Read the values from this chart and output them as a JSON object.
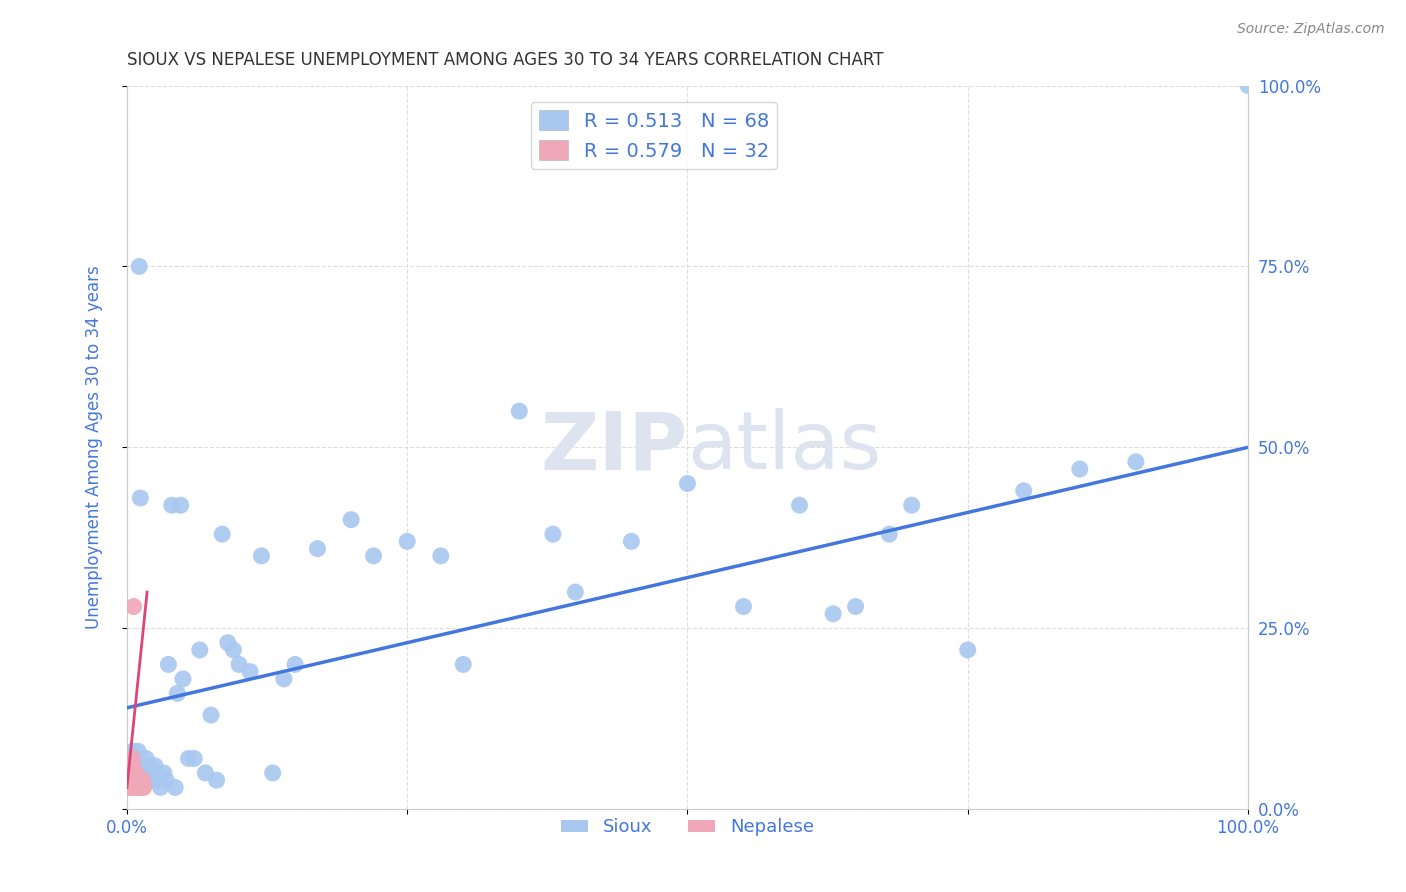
{
  "title": "SIOUX VS NEPALESE UNEMPLOYMENT AMONG AGES 30 TO 34 YEARS CORRELATION CHART",
  "source": "Source: ZipAtlas.com",
  "ylabel": "Unemployment Among Ages 30 to 34 years",
  "xlim": [
    0,
    1
  ],
  "ylim": [
    0,
    1
  ],
  "x_tick_positions": [
    0,
    0.25,
    0.5,
    0.75,
    1.0
  ],
  "x_tick_labels_show": [
    "0.0%",
    "",
    "",
    "",
    "100.0%"
  ],
  "y_tick_positions": [
    0,
    0.25,
    0.5,
    0.75,
    1.0
  ],
  "right_y_tick_labels": [
    "0.0%",
    "25.0%",
    "50.0%",
    "75.0%",
    "100.0%"
  ],
  "sioux_color": "#a8c8f0",
  "nepalese_color": "#f0a8b8",
  "sioux_line_color": "#4477dd",
  "nepalese_line_color": "#dd4477",
  "sioux_R": 0.513,
  "sioux_N": 68,
  "nepalese_R": 0.579,
  "nepalese_N": 32,
  "watermark_zip": "ZIP",
  "watermark_atlas": "atlas",
  "watermark_color": "#dde4ef",
  "grid_color": "#dddddd",
  "title_color": "#333333",
  "tick_label_color": "#4477dd",
  "sioux_x": [
    0.005,
    0.005,
    0.007,
    0.008,
    0.009,
    0.01,
    0.01,
    0.011,
    0.012,
    0.013,
    0.014,
    0.015,
    0.016,
    0.017,
    0.018,
    0.019,
    0.02,
    0.021,
    0.022,
    0.023,
    0.025,
    0.027,
    0.03,
    0.033,
    0.035,
    0.037,
    0.04,
    0.043,
    0.045,
    0.048,
    0.05,
    0.055,
    0.06,
    0.065,
    0.07,
    0.075,
    0.08,
    0.085,
    0.09,
    0.095,
    0.1,
    0.11,
    0.12,
    0.13,
    0.14,
    0.15,
    0.17,
    0.2,
    0.22,
    0.25,
    0.28,
    0.3,
    0.35,
    0.38,
    0.4,
    0.45,
    0.5,
    0.55,
    0.6,
    0.63,
    0.65,
    0.68,
    0.7,
    0.75,
    0.8,
    0.85,
    0.9,
    1.0
  ],
  "sioux_y": [
    0.05,
    0.08,
    0.04,
    0.06,
    0.03,
    0.04,
    0.08,
    0.75,
    0.43,
    0.04,
    0.03,
    0.05,
    0.05,
    0.07,
    0.04,
    0.05,
    0.06,
    0.04,
    0.05,
    0.04,
    0.06,
    0.04,
    0.03,
    0.05,
    0.04,
    0.2,
    0.42,
    0.03,
    0.16,
    0.42,
    0.18,
    0.07,
    0.07,
    0.22,
    0.05,
    0.13,
    0.04,
    0.38,
    0.23,
    0.22,
    0.2,
    0.19,
    0.35,
    0.05,
    0.18,
    0.2,
    0.36,
    0.4,
    0.35,
    0.37,
    0.35,
    0.2,
    0.55,
    0.38,
    0.3,
    0.37,
    0.45,
    0.28,
    0.42,
    0.27,
    0.28,
    0.38,
    0.42,
    0.22,
    0.44,
    0.47,
    0.48,
    1.0
  ],
  "nepalese_x": [
    0.003,
    0.003,
    0.003,
    0.003,
    0.004,
    0.004,
    0.004,
    0.004,
    0.005,
    0.005,
    0.005,
    0.005,
    0.005,
    0.006,
    0.006,
    0.006,
    0.006,
    0.007,
    0.007,
    0.007,
    0.008,
    0.008,
    0.008,
    0.009,
    0.009,
    0.01,
    0.01,
    0.011,
    0.012,
    0.013,
    0.014,
    0.015
  ],
  "nepalese_y": [
    0.03,
    0.04,
    0.05,
    0.06,
    0.03,
    0.04,
    0.05,
    0.06,
    0.03,
    0.04,
    0.05,
    0.06,
    0.07,
    0.03,
    0.04,
    0.05,
    0.28,
    0.03,
    0.04,
    0.05,
    0.03,
    0.04,
    0.05,
    0.03,
    0.04,
    0.03,
    0.04,
    0.03,
    0.04,
    0.03,
    0.04,
    0.03
  ],
  "sioux_line_x": [
    0.0,
    1.0
  ],
  "sioux_line_y": [
    0.14,
    0.5
  ],
  "nep_line_x": [
    0.0,
    0.018
  ],
  "nep_line_y": [
    0.03,
    0.3
  ]
}
